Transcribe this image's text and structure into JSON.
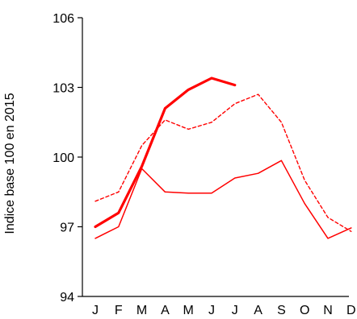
{
  "chart_data": {
    "type": "line",
    "ylabel": "Indice base 100 en 2015",
    "xlabel": "",
    "title": "",
    "categories": [
      "J",
      "F",
      "M",
      "A",
      "M",
      "J",
      "J",
      "A",
      "S",
      "O",
      "N",
      "D"
    ],
    "ylim": [
      94,
      106
    ],
    "yticks": [
      94,
      97,
      100,
      103,
      106
    ],
    "grid": false,
    "series": [
      {
        "style": "solid-thick",
        "color": "#ff0000",
        "values": [
          97.0,
          97.6,
          99.6,
          102.1,
          102.9,
          103.4,
          103.1,
          null,
          null,
          null,
          null,
          null
        ]
      },
      {
        "style": "solid-thin",
        "color": "#ff0000",
        "values": [
          96.5,
          97.0,
          99.5,
          98.5,
          98.45,
          98.45,
          99.1,
          99.3,
          99.85,
          98.0,
          96.5,
          96.95
        ]
      },
      {
        "style": "dashed",
        "color": "#ff0000",
        "values": [
          98.1,
          98.5,
          100.5,
          101.6,
          101.2,
          101.5,
          102.3,
          102.7,
          101.5,
          99.0,
          97.4,
          96.8
        ]
      }
    ]
  }
}
